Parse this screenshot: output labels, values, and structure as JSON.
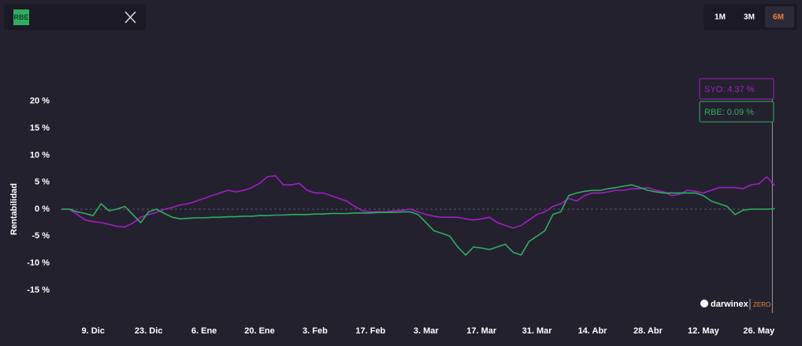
{
  "header": {
    "badge": "RBE"
  },
  "periods": [
    "1M",
    "3M",
    "6M"
  ],
  "brand": {
    "name": "darwinex",
    "tag": "ZERO"
  },
  "chart_data": {
    "type": "line",
    "y_label": "Rentabilidad",
    "categories": [
      null,
      null,
      null,
      null,
      "9. Dic",
      null,
      null,
      null,
      null,
      null,
      null,
      "23. Dic",
      null,
      null,
      null,
      null,
      null,
      null,
      "6. Ene",
      null,
      null,
      null,
      null,
      null,
      null,
      "20. Ene",
      null,
      null,
      null,
      null,
      null,
      null,
      "3. Feb",
      null,
      null,
      null,
      null,
      null,
      null,
      "17. Feb",
      null,
      null,
      null,
      null,
      null,
      null,
      "3. Mar",
      null,
      null,
      null,
      null,
      null,
      null,
      "17. Mar",
      null,
      null,
      null,
      null,
      null,
      null,
      "31. Mar",
      null,
      null,
      null,
      null,
      null,
      null,
      "14. Abr",
      null,
      null,
      null,
      null,
      null,
      null,
      "28. Abr",
      null,
      null,
      null,
      null,
      null,
      null,
      "12. May",
      null,
      null,
      null,
      null,
      null,
      null,
      "26. May",
      null,
      null
    ],
    "series": [
      {
        "color": "#a21fc4",
        "tooltip": "SYO: 4.37 %",
        "values": [
          0,
          0,
          -1,
          -2,
          -2.3,
          -2.5,
          -2.8,
          -3.2,
          -3.3,
          -2.6,
          -1.5,
          -1,
          -0.6,
          0,
          0.3,
          0.8,
          1,
          1.5,
          2,
          2.5,
          3,
          3.5,
          3.2,
          3.5,
          4,
          4.8,
          6,
          6.2,
          4.5,
          4.5,
          4.8,
          3.5,
          3,
          3,
          2.5,
          2,
          1.5,
          0.5,
          -0.3,
          -0.5,
          -0.5,
          -0.5,
          -0.3,
          -0.2,
          0,
          -0.5,
          -1,
          -1.3,
          -1.5,
          -1.5,
          -1.5,
          -1.8,
          -2,
          -1.8,
          -1.5,
          -2.5,
          -3,
          -3.5,
          -3,
          -2,
          -1,
          -0.5,
          0.5,
          1,
          2,
          1.5,
          2.5,
          3,
          3,
          3.2,
          3.5,
          3.5,
          3.8,
          3.8,
          4,
          3.5,
          3.2,
          2.5,
          2.8,
          3.5,
          3.3,
          3,
          3.5,
          4,
          4,
          4,
          3.8,
          4.5,
          4.7,
          6,
          4.37
        ]
      },
      {
        "color": "#2fae60",
        "tooltip": "RBE: 0.09 %",
        "values": [
          0,
          0,
          -0.5,
          -0.8,
          -1.2,
          1,
          -0.3,
          0,
          0.5,
          -1,
          -2.5,
          -0.5,
          0,
          -0.8,
          -1.5,
          -1.8,
          -1.7,
          -1.6,
          -1.6,
          -1.5,
          -1.5,
          -1.4,
          -1.4,
          -1.3,
          -1.3,
          -1.2,
          -1.2,
          -1.1,
          -1.1,
          -1,
          -1,
          -1,
          -0.9,
          -0.9,
          -0.8,
          -0.8,
          -0.8,
          -0.7,
          -0.7,
          -0.7,
          -0.6,
          -0.6,
          -0.6,
          -0.5,
          -0.5,
          -1,
          -2.5,
          -4,
          -4.5,
          -5,
          -7,
          -8.5,
          -7,
          -7.2,
          -7.5,
          -7,
          -6.5,
          -8,
          -8.5,
          -6,
          -5,
          -4,
          -1,
          -0.5,
          2.5,
          3,
          3.3,
          3.5,
          3.5,
          3.8,
          4,
          4.3,
          4.5,
          4,
          3.5,
          3.2,
          3,
          3,
          3,
          3,
          3,
          2.5,
          1.5,
          1,
          0.5,
          -1,
          -0.2,
          0,
          0,
          0,
          0.09
        ]
      }
    ],
    "ylim": [
      -19,
      25
    ],
    "yticks": [
      {
        "value": 20,
        "label": "20 %"
      },
      {
        "value": 15,
        "label": "15 %"
      },
      {
        "value": 10,
        "label": "10 %"
      },
      {
        "value": 5,
        "label": "5 %"
      },
      {
        "value": 0,
        "label": "0 %"
      },
      {
        "value": -5,
        "label": "-5 %"
      },
      {
        "value": -10,
        "label": "-10 %"
      },
      {
        "value": -15,
        "label": "-15 %"
      }
    ]
  }
}
